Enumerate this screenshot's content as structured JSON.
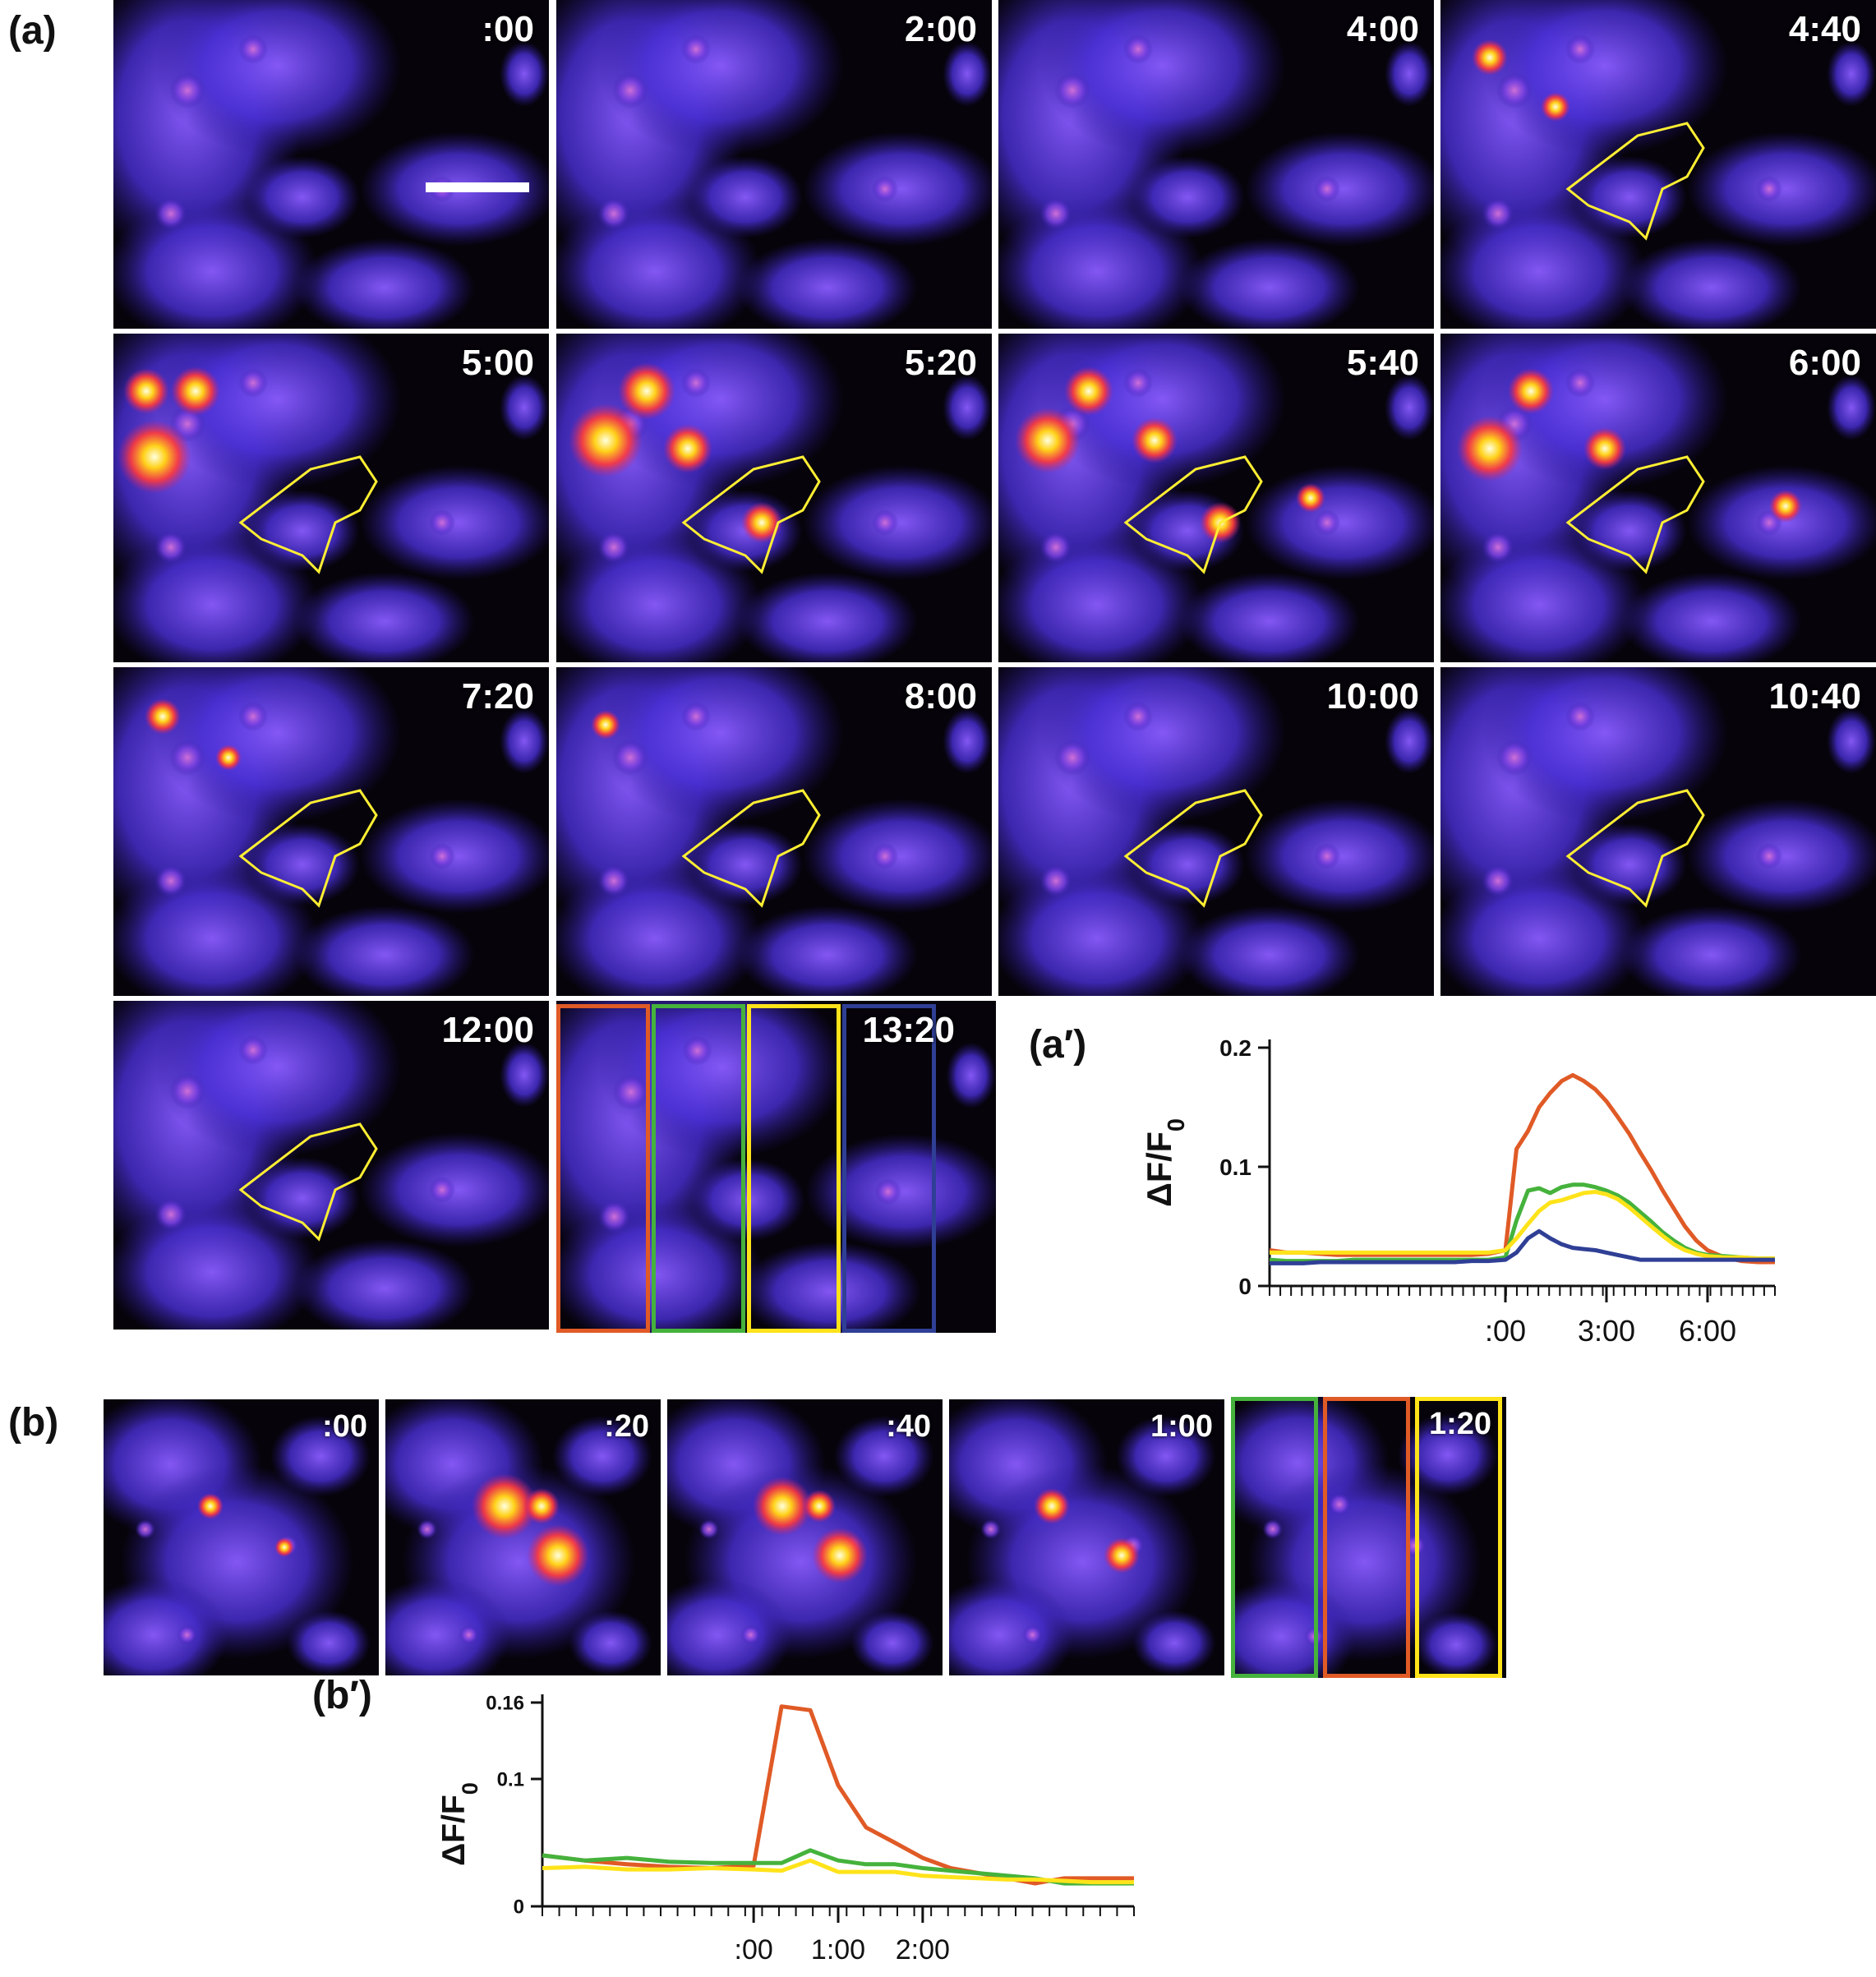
{
  "figure": {
    "panel_a_label": "(a)",
    "panel_a_prime_label": "(a′)",
    "panel_b_label": "(b)",
    "panel_b_prime_label": "(b′)",
    "panel_a_times": [
      ":00",
      "2:00",
      "4:00",
      "4:40",
      "5:00",
      "5:20",
      "5:40",
      "6:00",
      "7:20",
      "8:00",
      "10:00",
      "10:40",
      "12:00",
      "13:20"
    ],
    "panel_b_times": [
      ":00",
      ":20",
      ":40",
      "1:00",
      "1:20"
    ],
    "strip_colors": {
      "red": "#e05a26",
      "green": "#45b23c",
      "yellow": "#ffe31a",
      "blue": "#2f3f95"
    }
  },
  "chart_data": [
    {
      "type": "line",
      "title": "",
      "xlabel": "",
      "ylabel": "ΔF/F0",
      "ylabel_main": "ΔF/F",
      "ylabel_sub": "0",
      "ylim": [
        0,
        0.2
      ],
      "yticks": [
        0,
        0.1,
        0.2
      ],
      "ytick_labels": [
        "0",
        "0.1",
        "0.2"
      ],
      "xlim": [
        -7,
        8
      ],
      "xtick_values": [
        0,
        3,
        6
      ],
      "xtick_labels": [
        ":00",
        "3:00",
        "6:00"
      ],
      "x": [
        -7,
        -6.5,
        -6,
        -5.5,
        -5,
        -4.5,
        -4,
        -3.5,
        -3,
        -2.5,
        -2,
        -1.5,
        -1,
        -0.5,
        0,
        0.33,
        0.67,
        1,
        1.33,
        1.67,
        2,
        2.33,
        2.67,
        3,
        3.33,
        3.67,
        4,
        4.33,
        4.67,
        5,
        5.33,
        5.67,
        6,
        6.5,
        7,
        7.5,
        8
      ],
      "series": [
        {
          "name": "red",
          "color": "#e05a26",
          "values": [
            0.03,
            0.028,
            0.028,
            0.027,
            0.026,
            0.026,
            0.026,
            0.026,
            0.026,
            0.026,
            0.026,
            0.026,
            0.026,
            0.027,
            0.03,
            0.115,
            0.13,
            0.15,
            0.162,
            0.172,
            0.177,
            0.172,
            0.165,
            0.155,
            0.142,
            0.128,
            0.112,
            0.097,
            0.08,
            0.065,
            0.05,
            0.038,
            0.03,
            0.024,
            0.021,
            0.02,
            0.02
          ]
        },
        {
          "name": "green",
          "color": "#45b23c",
          "values": [
            0.022,
            0.021,
            0.021,
            0.021,
            0.021,
            0.022,
            0.022,
            0.022,
            0.022,
            0.022,
            0.022,
            0.022,
            0.022,
            0.022,
            0.024,
            0.055,
            0.08,
            0.082,
            0.078,
            0.083,
            0.085,
            0.085,
            0.083,
            0.08,
            0.076,
            0.07,
            0.062,
            0.054,
            0.045,
            0.038,
            0.032,
            0.028,
            0.026,
            0.025,
            0.024,
            0.023,
            0.023
          ]
        },
        {
          "name": "yellow",
          "color": "#ffe31a",
          "values": [
            0.028,
            0.028,
            0.028,
            0.028,
            0.028,
            0.028,
            0.028,
            0.028,
            0.028,
            0.028,
            0.028,
            0.028,
            0.028,
            0.028,
            0.03,
            0.04,
            0.052,
            0.063,
            0.07,
            0.072,
            0.075,
            0.078,
            0.079,
            0.077,
            0.073,
            0.066,
            0.058,
            0.05,
            0.042,
            0.035,
            0.03,
            0.027,
            0.025,
            0.024,
            0.024,
            0.023,
            0.023
          ]
        },
        {
          "name": "blue",
          "color": "#2f3f95",
          "values": [
            0.019,
            0.019,
            0.019,
            0.02,
            0.02,
            0.02,
            0.02,
            0.02,
            0.02,
            0.02,
            0.02,
            0.02,
            0.021,
            0.021,
            0.022,
            0.028,
            0.04,
            0.046,
            0.04,
            0.035,
            0.032,
            0.031,
            0.03,
            0.028,
            0.026,
            0.024,
            0.022,
            0.022,
            0.022,
            0.022,
            0.022,
            0.022,
            0.022,
            0.022,
            0.022,
            0.022,
            0.022
          ]
        }
      ]
    },
    {
      "type": "line",
      "title": "",
      "xlabel": "",
      "ylabel": "ΔF/F0",
      "ylabel_main": "ΔF/F",
      "ylabel_sub": "0",
      "ylim": [
        0,
        0.16
      ],
      "yticks": [
        0,
        0.1,
        0.16
      ],
      "ytick_labels": [
        "0",
        "0.1",
        "0.16"
      ],
      "xlim": [
        -2.5,
        4.5
      ],
      "xtick_values": [
        0,
        1,
        2
      ],
      "xtick_labels": [
        ":00",
        "1:00",
        "2:00"
      ],
      "x": [
        -2.5,
        -2,
        -1.5,
        -1,
        -0.5,
        0,
        0.33,
        0.67,
        1,
        1.33,
        1.67,
        2,
        2.33,
        2.67,
        3,
        3.33,
        3.67,
        4,
        4.5
      ],
      "series": [
        {
          "name": "red",
          "color": "#e05a26",
          "values": [
            0.04,
            0.036,
            0.033,
            0.031,
            0.03,
            0.032,
            0.157,
            0.154,
            0.095,
            0.062,
            0.05,
            0.038,
            0.03,
            0.026,
            0.022,
            0.018,
            0.022,
            0.022,
            0.022
          ]
        },
        {
          "name": "green",
          "color": "#45b23c",
          "values": [
            0.04,
            0.036,
            0.038,
            0.035,
            0.034,
            0.034,
            0.034,
            0.044,
            0.036,
            0.033,
            0.033,
            0.03,
            0.028,
            0.026,
            0.024,
            0.022,
            0.018,
            0.018,
            0.018
          ]
        },
        {
          "name": "yellow",
          "color": "#ffe31a",
          "values": [
            0.03,
            0.031,
            0.029,
            0.029,
            0.03,
            0.029,
            0.028,
            0.036,
            0.027,
            0.027,
            0.027,
            0.024,
            0.023,
            0.022,
            0.021,
            0.021,
            0.02,
            0.019,
            0.019
          ]
        }
      ]
    }
  ]
}
